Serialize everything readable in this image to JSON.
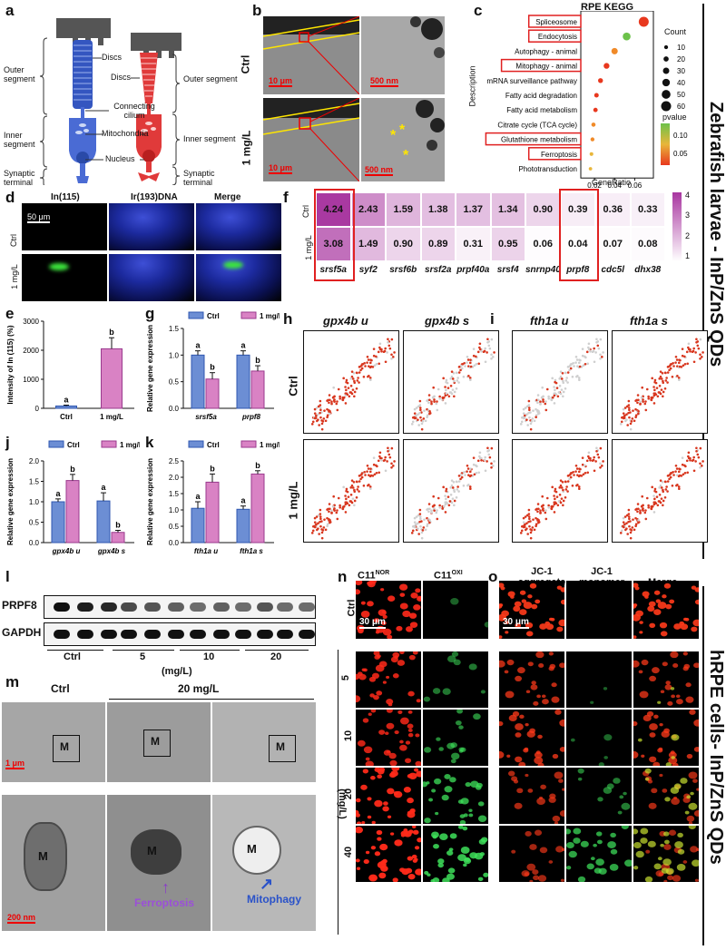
{
  "panels": [
    "a",
    "b",
    "c",
    "d",
    "e",
    "f",
    "g",
    "h",
    "i",
    "j",
    "k",
    "l",
    "m",
    "n",
    "o"
  ],
  "side_titles": {
    "top": "Zebrafish larvae - InP/ZnS QDs",
    "bottom": "hRPE cells- InP/ZnS QDs"
  },
  "panel_a": {
    "labels_left": [
      "Outer segment",
      "Inner segment",
      "Synaptic terminal"
    ],
    "labels_mid": [
      "Discs",
      "Connecting cilium",
      "Mitochondria",
      "Nucleus"
    ],
    "labels_right": [
      "Discs",
      "Outer segment",
      "Inner segment",
      "Synaptic terminal"
    ],
    "colors": {
      "rod": "#4a6bd4",
      "cone": "#e03a3a",
      "rpe": "#555555"
    }
  },
  "panel_b": {
    "rows": [
      "Ctrl",
      "1 mg/L"
    ],
    "scale_left": "10 μm",
    "scale_right": "500 nm"
  },
  "panel_c": {
    "title": "RPE KEGG",
    "ylabel": "Description",
    "xlabel": "GeneRatio",
    "size_legend_title": "Count",
    "color_legend_title": "pvalue"
  },
  "panel_d": {
    "columns": [
      "In(115)",
      "Ir(193)DNA",
      "Merge"
    ],
    "rows": [
      "Ctrl",
      "1 mg/L"
    ],
    "scale": "50 μm"
  },
  "panel_e": {
    "ylabel": "Intensity of In (115) (%)"
  },
  "panel_f": {
    "rows": [
      "Ctrl",
      "1 mg/L"
    ]
  },
  "panel_g": {
    "ylabel": "Relative gene expression",
    "legend": [
      "Ctrl",
      "1 mg/L"
    ]
  },
  "panel_h": {
    "columns": [
      "gpx4b u",
      "gpx4b s"
    ],
    "rows": [
      "Ctrl",
      "1 mg/L"
    ]
  },
  "panel_i": {
    "columns": [
      "fth1a u",
      "fth1a s"
    ]
  },
  "panel_j": {
    "ylabel": "Relative gene expression",
    "legend": [
      "Ctrl",
      "1 mg/L"
    ]
  },
  "panel_k": {
    "ylabel": "Relative gene expression",
    "legend": [
      "Ctrl",
      "1 mg/L"
    ]
  },
  "panel_l": {
    "bands": [
      "PRPF8",
      "GAPDH"
    ],
    "groups": [
      "Ctrl",
      "5",
      "10",
      "20"
    ],
    "unit": "(mg/L)"
  },
  "panel_m": {
    "groups": [
      "Ctrl",
      "20 mg/L"
    ],
    "marker": "M",
    "scale_top": "1 μm",
    "scale_bottom": "200 nm",
    "annotations": [
      "Ferroptosis",
      "Mitophagy"
    ]
  },
  "panel_n": {
    "columns": [
      "C11",
      "C11"
    ],
    "superscripts": [
      "NOR",
      "OXI"
    ],
    "rows": [
      "Ctrl",
      "5",
      "10",
      "20",
      "40"
    ],
    "unit": "(mg/L)",
    "scale": "30 μm"
  },
  "panel_o": {
    "columns": [
      "JC-1 aggregate",
      "JC-1 monomer",
      "Merge"
    ],
    "col1_line1": "JC-1",
    "col1_line2": "aggregate",
    "col2_line1": "JC-1",
    "col2_line2": "monomer",
    "scale": "30 μm"
  },
  "chart_data": [
    {
      "id": "c",
      "type": "scatter",
      "title": "RPE KEGG",
      "xlabel": "GeneRatio",
      "ylabel": "Description",
      "categories": [
        "Spliceosome",
        "Endocytosis",
        "Autophagy - animal",
        "Mitophagy - animal",
        "mRNA surveillance pathway",
        "Fatty acid degradation",
        "Fatty acid metabolism",
        "Citrate cycle (TCA cycle)",
        "Glutathione metabolism",
        "Ferroptosis",
        "Phototransduction"
      ],
      "highlighted": [
        "Spliceosome",
        "Endocytosis",
        "Mitophagy - animal",
        "Glutathione metabolism",
        "Ferroptosis"
      ],
      "x": [
        0.069,
        0.052,
        0.04,
        0.032,
        0.026,
        0.022,
        0.021,
        0.019,
        0.018,
        0.017,
        0.016
      ],
      "count": [
        60,
        42,
        30,
        25,
        18,
        15,
        14,
        12,
        10,
        8,
        6
      ],
      "pvalue": [
        0.03,
        0.12,
        0.06,
        0.04,
        0.05,
        0.04,
        0.05,
        0.06,
        0.07,
        0.08,
        0.09
      ],
      "xticks": [
        "0.02",
        "0.04",
        "0.06"
      ],
      "xlim": [
        0.01,
        0.075
      ],
      "size_legend": [
        "10",
        "20",
        "30",
        "40",
        "50",
        "60"
      ],
      "color_legend": [
        "0.10",
        "0.05"
      ]
    },
    {
      "id": "e",
      "type": "bar",
      "categories": [
        "Ctrl",
        "1 mg/L"
      ],
      "values": [
        80,
        2050
      ],
      "errors": [
        30,
        380
      ],
      "significance": [
        "a",
        "b"
      ],
      "ylabel": "Intensity of In (115) (%)",
      "yticks": [
        "0",
        "1000",
        "2000",
        "3000"
      ],
      "ylim": [
        0,
        3000
      ],
      "colors": [
        "#6c8ed4",
        "#d982c4"
      ]
    },
    {
      "id": "f",
      "type": "heatmap",
      "rows": [
        "Ctrl",
        "1 mg/L"
      ],
      "columns": [
        "srsf5a",
        "syf2",
        "srsf6b",
        "srsf2a",
        "prpf40a",
        "srsf4",
        "snrnp40",
        "prpf8",
        "cdc5l",
        "dhx38"
      ],
      "values": [
        [
          4.24,
          2.43,
          1.59,
          1.38,
          1.37,
          1.34,
          0.9,
          0.39,
          0.36,
          0.33
        ],
        [
          3.08,
          1.49,
          0.9,
          0.89,
          0.31,
          0.95,
          0.06,
          0.04,
          0.07,
          0.08
        ]
      ],
      "highlighted_columns": [
        "srsf5a",
        "prpf8"
      ],
      "scale_ticks": [
        "4",
        "3",
        "2",
        "1"
      ]
    },
    {
      "id": "g",
      "type": "bar",
      "categories": [
        "srsf5a",
        "prpf8"
      ],
      "series": [
        {
          "name": "Ctrl",
          "values": [
            1.0,
            1.0
          ],
          "errors": [
            0.08,
            0.08
          ]
        },
        {
          "name": "1 mg/L",
          "values": [
            0.55,
            0.7
          ],
          "errors": [
            0.12,
            0.1
          ]
        }
      ],
      "significance": [
        [
          "a",
          "b"
        ],
        [
          "a",
          "b"
        ]
      ],
      "yticks": [
        "0.0",
        "0.5",
        "1.0",
        "1.5"
      ],
      "ylim": [
        0,
        1.5
      ]
    },
    {
      "id": "j",
      "type": "bar",
      "categories": [
        "gpx4b u",
        "gpx4b s"
      ],
      "series": [
        {
          "name": "Ctrl",
          "values": [
            1.0,
            1.02
          ],
          "errors": [
            0.07,
            0.2
          ]
        },
        {
          "name": "1 mg/L",
          "values": [
            1.52,
            0.25
          ],
          "errors": [
            0.15,
            0.05
          ]
        }
      ],
      "significance": [
        [
          "a",
          "b"
        ],
        [
          "a",
          "b"
        ]
      ],
      "yticks": [
        "0.0",
        "0.5",
        "1.0",
        "1.5",
        "2.0"
      ],
      "ylim": [
        0,
        2.0
      ]
    },
    {
      "id": "k",
      "type": "bar",
      "categories": [
        "fth1a u",
        "fth1a s"
      ],
      "series": [
        {
          "name": "Ctrl",
          "values": [
            1.05,
            1.02
          ],
          "errors": [
            0.2,
            0.1
          ]
        },
        {
          "name": "1 mg/L",
          "values": [
            1.85,
            2.1
          ],
          "errors": [
            0.25,
            0.1
          ]
        }
      ],
      "significance": [
        [
          "a",
          "b"
        ],
        [
          "a",
          "b"
        ]
      ],
      "yticks": [
        "0.0",
        "0.5",
        "1.0",
        "1.5",
        "2.0",
        "2.5"
      ],
      "ylim": [
        0,
        2.5
      ]
    }
  ]
}
